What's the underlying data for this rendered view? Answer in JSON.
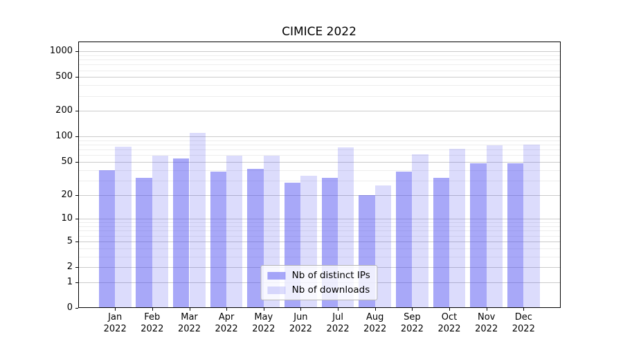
{
  "figure": {
    "title": "CIMICE 2022",
    "background": "#ffffff"
  },
  "chart_data": {
    "type": "bar",
    "title": "CIMICE 2022",
    "categories": [
      "Jan 2022",
      "Feb 2022",
      "Mar 2022",
      "Apr 2022",
      "May 2022",
      "Jun 2022",
      "Jul 2022",
      "Aug 2022",
      "Sep 2022",
      "Oct 2022",
      "Nov 2022",
      "Dec 2022"
    ],
    "x_tick_line1": [
      "Jan",
      "Feb",
      "Mar",
      "Apr",
      "May",
      "Jun",
      "Jul",
      "Aug",
      "Sep",
      "Oct",
      "Nov",
      "Dec"
    ],
    "x_tick_line2": "2022",
    "series": [
      {
        "name": "Nb of distinct IPs",
        "color": "rgba(70,70,240,0.47)",
        "values": [
          40,
          32,
          55,
          38,
          41,
          28,
          32,
          20,
          38,
          32,
          48,
          48
        ]
      },
      {
        "name": "Nb of downloads",
        "color": "rgba(70,70,240,0.19)",
        "values": [
          76,
          59,
          110,
          59,
          59,
          34,
          75,
          26,
          62,
          71,
          78,
          80
        ]
      }
    ],
    "xlabel": "",
    "ylabel": "",
    "yscale": "log1p",
    "ylim": [
      0,
      1300
    ],
    "yticks": [
      0,
      1,
      2,
      5,
      10,
      20,
      50,
      100,
      200,
      500,
      1000
    ],
    "yticks_minor": [
      3,
      4,
      6,
      7,
      8,
      9,
      30,
      40,
      60,
      70,
      80,
      90,
      300,
      400,
      600,
      700,
      800,
      900
    ],
    "grid": true,
    "legend_position": "lower center",
    "colors": {
      "major_grid": "#cbcbcb",
      "minor_grid": "#ededed",
      "axis": "#000000",
      "text": "#000000"
    }
  }
}
